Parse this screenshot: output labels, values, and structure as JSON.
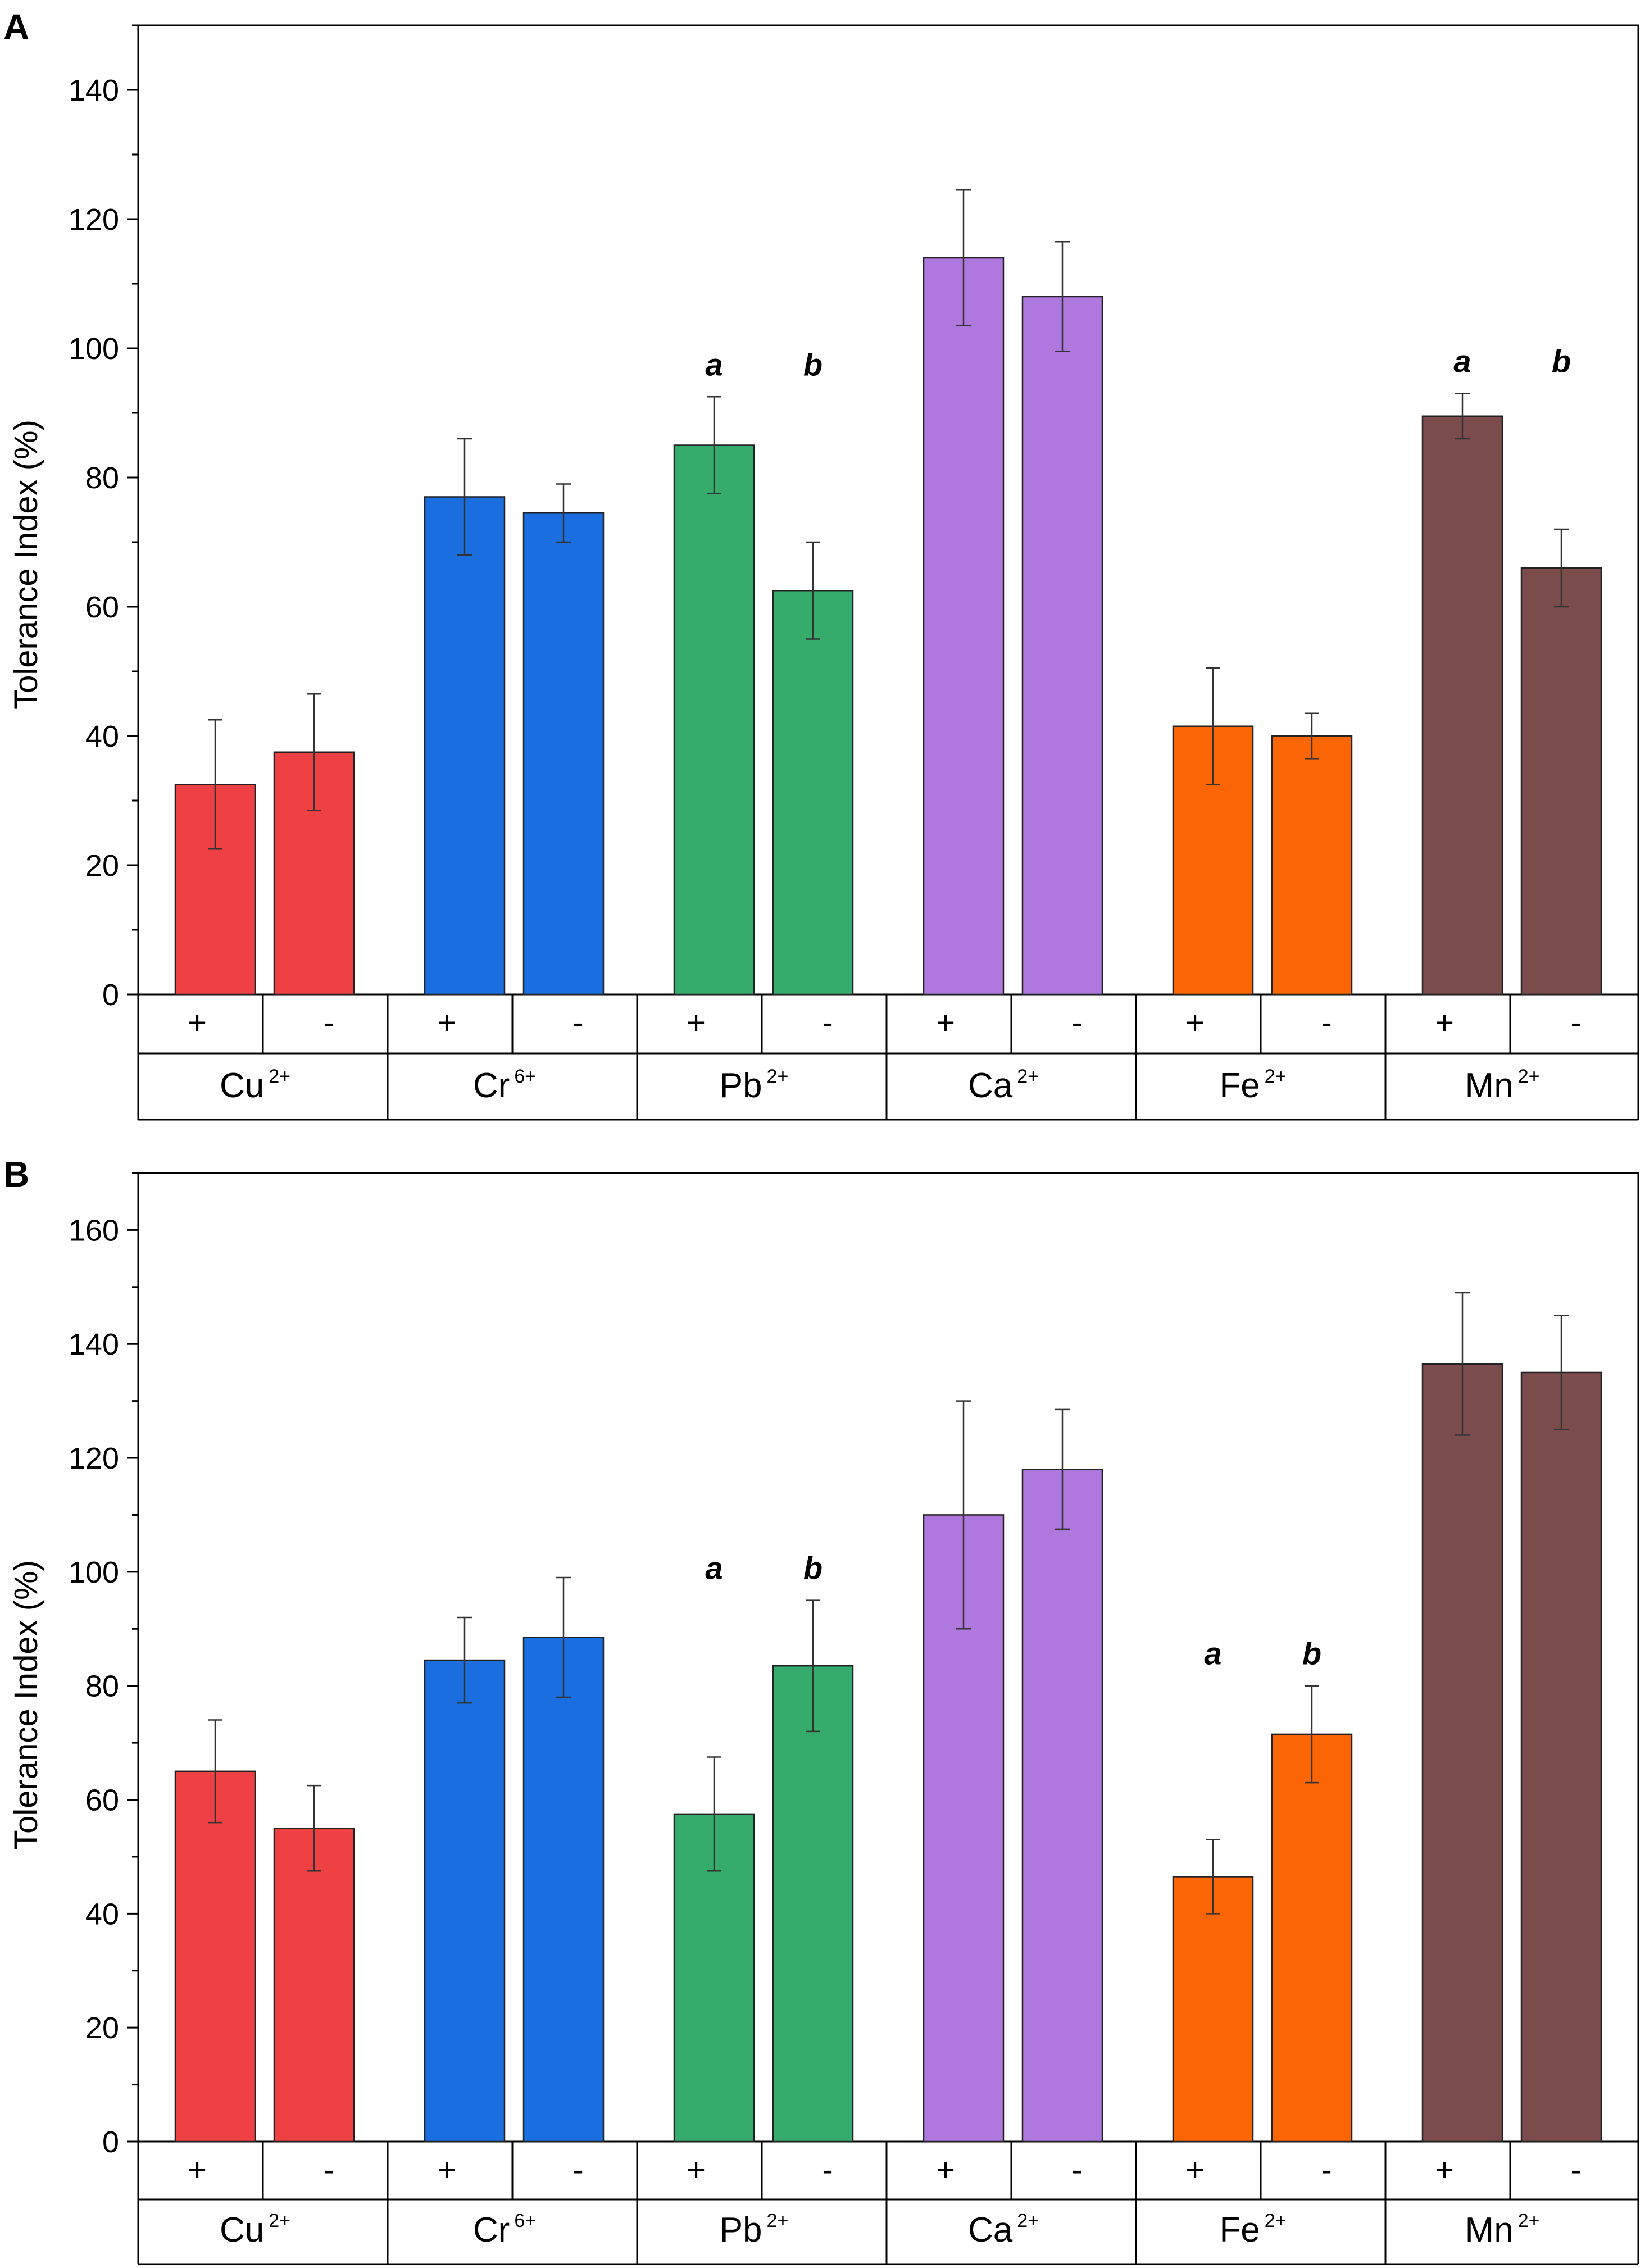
{
  "chart_data": [
    {
      "panel": "A",
      "type": "bar",
      "ylabel": "Tolerance Index (%)",
      "ylim": [
        0,
        150
      ],
      "yticks": [
        0,
        20,
        40,
        60,
        80,
        100,
        120,
        140
      ],
      "conditions": [
        "+",
        "-"
      ],
      "groups": [
        {
          "ion": "Cu",
          "charge": "2+",
          "color": "#ef4043",
          "bars": [
            {
              "cond": "+",
              "value": 32.5,
              "error": 10
            },
            {
              "cond": "-",
              "value": 37.5,
              "error": 9
            }
          ],
          "labels": []
        },
        {
          "ion": "Cr",
          "charge": "6+",
          "color": "#1b6ee0",
          "bars": [
            {
              "cond": "+",
              "value": 77,
              "error": 9
            },
            {
              "cond": "-",
              "value": 74.5,
              "error": 4.5
            }
          ],
          "labels": []
        },
        {
          "ion": "Pb",
          "charge": "2+",
          "color": "#35ac6c",
          "bars": [
            {
              "cond": "+",
              "value": 85,
              "error": 7.5
            },
            {
              "cond": "-",
              "value": 62.5,
              "error": 7.5
            }
          ],
          "labels": [
            "a",
            "b"
          ]
        },
        {
          "ion": "Ca",
          "charge": "2+",
          "color": "#af78df",
          "bars": [
            {
              "cond": "+",
              "value": 114,
              "error": 10.5
            },
            {
              "cond": "-",
              "value": 108,
              "error": 8.5
            }
          ],
          "labels": []
        },
        {
          "ion": "Fe",
          "charge": "2+",
          "color": "#fc6503",
          "bars": [
            {
              "cond": "+",
              "value": 41.5,
              "error": 9
            },
            {
              "cond": "-",
              "value": 40,
              "error": 3.5
            }
          ],
          "labels": []
        },
        {
          "ion": "Mn",
          "charge": "2+",
          "color": "#7b4c4b",
          "bars": [
            {
              "cond": "+",
              "value": 89.5,
              "error": 3.5
            },
            {
              "cond": "-",
              "value": 66,
              "error": 6
            }
          ],
          "labels": [
            "a",
            "b"
          ]
        }
      ]
    },
    {
      "panel": "B",
      "type": "bar",
      "ylabel": "Tolerance Index (%)",
      "ylim": [
        0,
        170
      ],
      "yticks": [
        0,
        20,
        40,
        60,
        80,
        100,
        120,
        140,
        160
      ],
      "conditions": [
        "+",
        "-"
      ],
      "groups": [
        {
          "ion": "Cu",
          "charge": "2+",
          "color": "#ef4043",
          "bars": [
            {
              "cond": "+",
              "value": 65,
              "error": 9
            },
            {
              "cond": "-",
              "value": 55,
              "error": 7.5
            }
          ],
          "labels": []
        },
        {
          "ion": "Cr",
          "charge": "6+",
          "color": "#1b6ee0",
          "bars": [
            {
              "cond": "+",
              "value": 84.5,
              "error": 7.5
            },
            {
              "cond": "-",
              "value": 88.5,
              "error": 10.5
            }
          ],
          "labels": []
        },
        {
          "ion": "Pb",
          "charge": "2+",
          "color": "#35ac6c",
          "bars": [
            {
              "cond": "+",
              "value": 57.5,
              "error": 10
            },
            {
              "cond": "-",
              "value": 83.5,
              "error": 11.5
            }
          ],
          "labels": [
            "a",
            "b"
          ]
        },
        {
          "ion": "Ca",
          "charge": "2+",
          "color": "#af78df",
          "bars": [
            {
              "cond": "+",
              "value": 110,
              "error": 20
            },
            {
              "cond": "-",
              "value": 118,
              "error": 10.5
            }
          ],
          "labels": []
        },
        {
          "ion": "Fe",
          "charge": "2+",
          "color": "#fc6503",
          "bars": [
            {
              "cond": "+",
              "value": 46.5,
              "error": 6.5
            },
            {
              "cond": "-",
              "value": 71.5,
              "error": 8.5
            }
          ],
          "labels": [
            "a",
            "b"
          ]
        },
        {
          "ion": "Mn",
          "charge": "2+",
          "color": "#7b4c4b",
          "bars": [
            {
              "cond": "+",
              "value": 136.5,
              "error": 12.5
            },
            {
              "cond": "-",
              "value": 135,
              "error": 10
            }
          ],
          "labels": []
        }
      ]
    }
  ]
}
